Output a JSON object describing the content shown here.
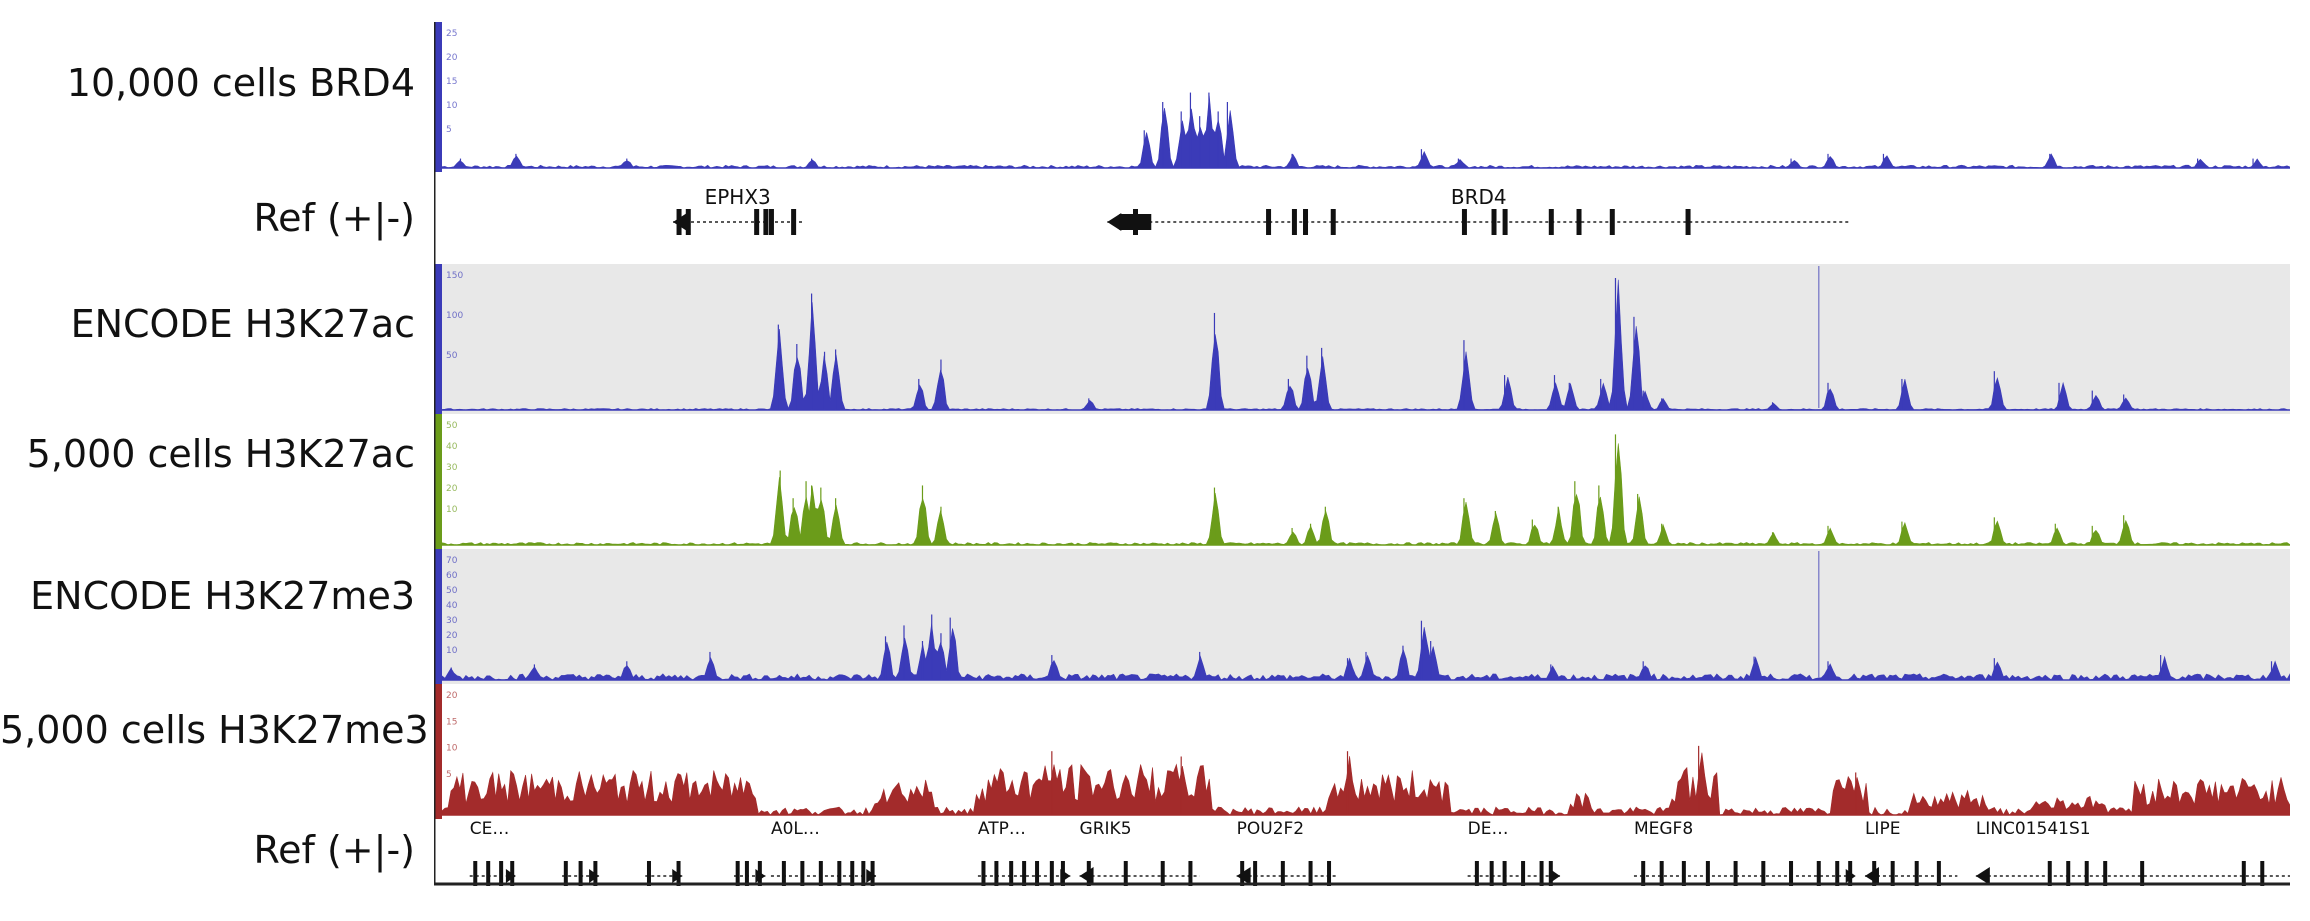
{
  "chart_data": {
    "type": "area",
    "xlabel": "",
    "ylabel": "",
    "tracks": [
      {
        "name": "10,000 cells BRD4",
        "kind": "signal",
        "color": "#3b3bb8",
        "background": "#ffffff",
        "ticks": [
          "25",
          "20",
          "15",
          "10",
          "5"
        ],
        "ylim": [
          0,
          28
        ],
        "peaks": [
          {
            "x": 0.01,
            "y": 2
          },
          {
            "x": 0.04,
            "y": 3
          },
          {
            "x": 0.1,
            "y": 2
          },
          {
            "x": 0.2,
            "y": 2
          },
          {
            "x": 0.38,
            "y": 8
          },
          {
            "x": 0.39,
            "y": 14
          },
          {
            "x": 0.4,
            "y": 12
          },
          {
            "x": 0.405,
            "y": 16
          },
          {
            "x": 0.41,
            "y": 11
          },
          {
            "x": 0.415,
            "y": 16
          },
          {
            "x": 0.42,
            "y": 12
          },
          {
            "x": 0.425,
            "y": 14
          },
          {
            "x": 0.46,
            "y": 3
          },
          {
            "x": 0.53,
            "y": 4
          },
          {
            "x": 0.55,
            "y": 2
          },
          {
            "x": 0.73,
            "y": 2
          },
          {
            "x": 0.75,
            "y": 3
          },
          {
            "x": 0.78,
            "y": 3
          },
          {
            "x": 0.87,
            "y": 3
          },
          {
            "x": 0.95,
            "y": 2
          },
          {
            "x": 0.98,
            "y": 2
          }
        ],
        "noise": 0.6
      },
      {
        "name": "Ref (+|-)",
        "kind": "genes",
        "genes": [
          {
            "label": "EPHX3",
            "start": 0.125,
            "end": 0.195,
            "strand": "-",
            "exons": [
              0.128,
              0.133,
              0.17,
              0.175,
              0.178,
              0.19
            ]
          },
          {
            "label": "BRD4",
            "start": 0.36,
            "end": 0.762,
            "strand": "-",
            "exons": [
              0.375,
              0.447,
              0.461,
              0.467,
              0.482,
              0.553,
              0.569,
              0.575,
              0.6,
              0.615,
              0.633,
              0.674
            ]
          }
        ]
      },
      {
        "name": "ENCODE H3K27ac",
        "kind": "signal",
        "color": "#3b3bb8",
        "background": "#e8e8e8",
        "ticks": [
          "150",
          "100",
          "50"
        ],
        "ylim": [
          0,
          170
        ],
        "peaks": [
          {
            "x": 0.182,
            "y": 110
          },
          {
            "x": 0.192,
            "y": 85
          },
          {
            "x": 0.2,
            "y": 150
          },
          {
            "x": 0.207,
            "y": 75
          },
          {
            "x": 0.213,
            "y": 78
          },
          {
            "x": 0.258,
            "y": 40
          },
          {
            "x": 0.27,
            "y": 65
          },
          {
            "x": 0.35,
            "y": 15
          },
          {
            "x": 0.418,
            "y": 125
          },
          {
            "x": 0.458,
            "y": 40
          },
          {
            "x": 0.468,
            "y": 70
          },
          {
            "x": 0.476,
            "y": 80
          },
          {
            "x": 0.553,
            "y": 90
          },
          {
            "x": 0.575,
            "y": 45
          },
          {
            "x": 0.602,
            "y": 45
          },
          {
            "x": 0.61,
            "y": 35
          },
          {
            "x": 0.627,
            "y": 40
          },
          {
            "x": 0.635,
            "y": 170
          },
          {
            "x": 0.645,
            "y": 120
          },
          {
            "x": 0.65,
            "y": 25
          },
          {
            "x": 0.66,
            "y": 15
          },
          {
            "x": 0.72,
            "y": 10
          },
          {
            "x": 0.75,
            "y": 35
          },
          {
            "x": 0.79,
            "y": 40
          },
          {
            "x": 0.84,
            "y": 50
          },
          {
            "x": 0.875,
            "y": 35
          },
          {
            "x": 0.893,
            "y": 25
          },
          {
            "x": 0.91,
            "y": 20
          }
        ],
        "noise": 2
      },
      {
        "name": "5,000 cells H3K27ac",
        "kind": "signal",
        "color": "#6b9c1a",
        "background": "#ffffff",
        "ticks": [
          "50",
          "40",
          "30",
          "20",
          "10"
        ],
        "ylim": [
          0,
          55
        ],
        "peaks": [
          {
            "x": 0.183,
            "y": 35
          },
          {
            "x": 0.19,
            "y": 22
          },
          {
            "x": 0.197,
            "y": 30
          },
          {
            "x": 0.2,
            "y": 28
          },
          {
            "x": 0.205,
            "y": 27
          },
          {
            "x": 0.213,
            "y": 22
          },
          {
            "x": 0.26,
            "y": 28
          },
          {
            "x": 0.27,
            "y": 18
          },
          {
            "x": 0.418,
            "y": 27
          },
          {
            "x": 0.46,
            "y": 8
          },
          {
            "x": 0.47,
            "y": 10
          },
          {
            "x": 0.478,
            "y": 18
          },
          {
            "x": 0.553,
            "y": 22
          },
          {
            "x": 0.57,
            "y": 16
          },
          {
            "x": 0.59,
            "y": 12
          },
          {
            "x": 0.604,
            "y": 18
          },
          {
            "x": 0.613,
            "y": 30
          },
          {
            "x": 0.626,
            "y": 28
          },
          {
            "x": 0.635,
            "y": 52
          },
          {
            "x": 0.647,
            "y": 24
          },
          {
            "x": 0.66,
            "y": 10
          },
          {
            "x": 0.72,
            "y": 6
          },
          {
            "x": 0.75,
            "y": 9
          },
          {
            "x": 0.79,
            "y": 11
          },
          {
            "x": 0.84,
            "y": 13
          },
          {
            "x": 0.873,
            "y": 10
          },
          {
            "x": 0.893,
            "y": 9
          },
          {
            "x": 0.91,
            "y": 14
          }
        ],
        "noise": 1.2
      },
      {
        "name": "ENCODE H3K27me3",
        "kind": "signal",
        "color": "#3b3bb8",
        "background": "#e8e8e8",
        "ticks": [
          "70",
          "60",
          "50",
          "40",
          "30",
          "20",
          "10"
        ],
        "ylim": [
          0,
          75
        ],
        "peaks": [
          {
            "x": 0.005,
            "y": 8
          },
          {
            "x": 0.05,
            "y": 10
          },
          {
            "x": 0.1,
            "y": 12
          },
          {
            "x": 0.145,
            "y": 18
          },
          {
            "x": 0.24,
            "y": 28
          },
          {
            "x": 0.25,
            "y": 35
          },
          {
            "x": 0.26,
            "y": 25
          },
          {
            "x": 0.265,
            "y": 42
          },
          {
            "x": 0.27,
            "y": 30
          },
          {
            "x": 0.275,
            "y": 40
          },
          {
            "x": 0.33,
            "y": 16
          },
          {
            "x": 0.41,
            "y": 18
          },
          {
            "x": 0.49,
            "y": 14
          },
          {
            "x": 0.5,
            "y": 18
          },
          {
            "x": 0.52,
            "y": 22
          },
          {
            "x": 0.53,
            "y": 38
          },
          {
            "x": 0.535,
            "y": 25
          },
          {
            "x": 0.6,
            "y": 10
          },
          {
            "x": 0.65,
            "y": 12
          },
          {
            "x": 0.71,
            "y": 15
          },
          {
            "x": 0.75,
            "y": 12
          },
          {
            "x": 0.84,
            "y": 14
          },
          {
            "x": 0.93,
            "y": 16
          },
          {
            "x": 0.99,
            "y": 12
          }
        ],
        "noise": 4
      },
      {
        "name": "5,000 cells H3K27me3",
        "kind": "signal",
        "color": "#a32b2b",
        "background": "#ffffff",
        "ticks": [
          "20",
          "15",
          "10",
          "5"
        ],
        "ylim": [
          0,
          22
        ],
        "regions": [
          {
            "start": 0.005,
            "end": 0.17,
            "level": 7
          },
          {
            "start": 0.235,
            "end": 0.265,
            "level": 6
          },
          {
            "start": 0.29,
            "end": 0.415,
            "level": 8
          },
          {
            "start": 0.48,
            "end": 0.545,
            "level": 7
          },
          {
            "start": 0.61,
            "end": 0.62,
            "level": 4
          },
          {
            "start": 0.665,
            "end": 0.69,
            "level": 8
          },
          {
            "start": 0.752,
            "end": 0.77,
            "level": 6
          },
          {
            "start": 0.795,
            "end": 0.835,
            "level": 4
          },
          {
            "start": 0.86,
            "end": 0.9,
            "level": 3
          },
          {
            "start": 0.915,
            "end": 1.0,
            "level": 6
          }
        ],
        "peaks": [
          {
            "x": 0.33,
            "y": 12
          },
          {
            "x": 0.4,
            "y": 11
          },
          {
            "x": 0.49,
            "y": 12
          },
          {
            "x": 0.68,
            "y": 13
          },
          {
            "x": 0.765,
            "y": 8
          }
        ],
        "noise": 1.5
      },
      {
        "name": "Ref (+|-)",
        "kind": "genes",
        "genes": [
          {
            "label": "CE…",
            "start": 0.015,
            "end": 0.04,
            "strand": "+",
            "exons": [
              0.018,
              0.025,
              0.032,
              0.038
            ]
          },
          {
            "label": "",
            "start": 0.065,
            "end": 0.085,
            "strand": "+",
            "exons": [
              0.067,
              0.075,
              0.083
            ]
          },
          {
            "label": "",
            "start": 0.11,
            "end": 0.13,
            "strand": "+",
            "exons": [
              0.112,
              0.128
            ]
          },
          {
            "label": "",
            "start": 0.158,
            "end": 0.175,
            "strand": "+",
            "exons": [
              0.16,
              0.165,
              0.172
            ]
          },
          {
            "label": "A0L…",
            "start": 0.178,
            "end": 0.235,
            "strand": "+",
            "exons": [
              0.185,
              0.195,
              0.205,
              0.215,
              0.222,
              0.228,
              0.233
            ]
          },
          {
            "label": "ATP…",
            "start": 0.29,
            "end": 0.34,
            "strand": "+",
            "exons": [
              0.293,
              0.3,
              0.308,
              0.315,
              0.322,
              0.33,
              0.336
            ]
          },
          {
            "label": "GRIK5",
            "start": 0.345,
            "end": 0.41,
            "strand": "-",
            "exons": [
              0.35,
              0.37,
              0.39,
              0.405
            ]
          },
          {
            "label": "POU2F2",
            "start": 0.43,
            "end": 0.485,
            "strand": "-",
            "exons": [
              0.433,
              0.44,
              0.455,
              0.47,
              0.48
            ]
          },
          {
            "label": "DE…",
            "start": 0.555,
            "end": 0.605,
            "strand": "+",
            "exons": [
              0.56,
              0.568,
              0.575,
              0.585,
              0.595,
              0.6
            ]
          },
          {
            "label": "MEGF8",
            "start": 0.645,
            "end": 0.765,
            "strand": "+",
            "exons": [
              0.65,
              0.66,
              0.672,
              0.685,
              0.7,
              0.715,
              0.73,
              0.745,
              0.755,
              0.762
            ]
          },
          {
            "label": "LIPE",
            "start": 0.77,
            "end": 0.82,
            "strand": "-",
            "exons": [
              0.775,
              0.785,
              0.798,
              0.81
            ]
          },
          {
            "label": "LINC01541S1",
            "start": 0.83,
            "end": 1.0,
            "strand": "-",
            "exons": [
              0.87,
              0.88,
              0.89,
              0.9,
              0.92,
              0.975,
              0.985
            ]
          }
        ]
      }
    ]
  }
}
